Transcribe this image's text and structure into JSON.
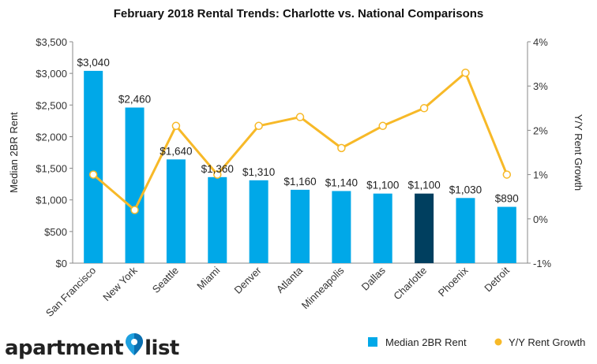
{
  "chart_data": {
    "type": "bar",
    "title": "February 2018 Rental Trends: Charlotte vs. National Comparisons",
    "categories": [
      "San Francisco",
      "New York",
      "Seattle",
      "Miami",
      "Denver",
      "Atlanta",
      "Minneapolis",
      "Dallas",
      "Charlotte",
      "Phoenix",
      "Detroit"
    ],
    "series": [
      {
        "name": "Median 2BR Rent",
        "type": "bar",
        "axis": "left",
        "values": [
          3040,
          2460,
          1640,
          1360,
          1310,
          1160,
          1140,
          1100,
          1100,
          1030,
          890
        ],
        "data_labels": [
          "$3,040",
          "$2,460",
          "$1,640",
          "$1,360",
          "$1,310",
          "$1,160",
          "$1,140",
          "$1,100",
          "$1,100",
          "$1,030",
          "$890"
        ],
        "color": "#00a8e8",
        "highlight": {
          "category": "Charlotte",
          "color": "#003f5f"
        }
      },
      {
        "name": "Y/Y Rent Growth",
        "type": "line",
        "axis": "right",
        "values": [
          1.0,
          0.2,
          2.1,
          1.0,
          2.1,
          2.3,
          1.6,
          2.1,
          2.5,
          3.3,
          1.0
        ],
        "color": "#f7b928"
      }
    ],
    "ylabel": "Median 2BR Rent",
    "y2label": "Y/Y Rent Growth",
    "ylim": [
      0,
      3500
    ],
    "y2lim": [
      -1,
      4
    ],
    "yticks": [
      "$0",
      "$500",
      "$1,000",
      "$1,500",
      "$2,000",
      "$2,500",
      "$3,000",
      "$3,500"
    ],
    "y2ticks": [
      "-1%",
      "0%",
      "1%",
      "2%",
      "3%",
      "4%"
    ],
    "grid": false,
    "legend": "bottom-right"
  },
  "logo": {
    "text_left": "apartment",
    "text_right": "list"
  }
}
